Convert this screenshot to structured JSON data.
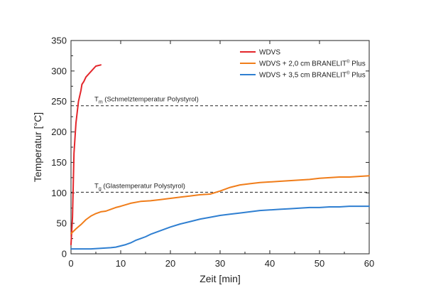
{
  "chart_data": {
    "type": "line",
    "xlabel": "Zeit [min]",
    "ylabel": "Temperatur [°C]",
    "xlim": [
      0,
      60
    ],
    "ylim": [
      0,
      350
    ],
    "xticks": [
      0,
      10,
      20,
      30,
      40,
      50,
      60
    ],
    "yticks": [
      0,
      50,
      100,
      150,
      200,
      250,
      300,
      350
    ],
    "grid": false,
    "legend_position": "top-right",
    "series": [
      {
        "name": "WDVS",
        "name_sup": "",
        "name_suffix": "",
        "color": "#e3262b",
        "x": [
          0,
          0.3,
          0.6,
          1.0,
          1.5,
          2.0,
          2.2,
          2.6,
          3.0,
          4.0,
          5.0,
          6.0
        ],
        "y": [
          15,
          60,
          165,
          215,
          250,
          268,
          278,
          283,
          290,
          299,
          308,
          310
        ]
      },
      {
        "name": "WDVS + 2,0 cm BRANELIT",
        "name_sup": "®",
        "name_suffix": " Plus",
        "color": "#f07d1a",
        "x": [
          0,
          1,
          2,
          3,
          4,
          5,
          6,
          7,
          8,
          9,
          10,
          12,
          14,
          16,
          18,
          20,
          22,
          24,
          26,
          28,
          30,
          32,
          34,
          36,
          38,
          40,
          42,
          44,
          46,
          48,
          50,
          52,
          54,
          56,
          58,
          60
        ],
        "y": [
          33,
          41,
          48,
          56,
          62,
          66,
          69,
          70,
          73,
          76,
          78,
          83,
          86,
          87,
          89,
          91,
          93,
          95,
          97,
          98,
          103,
          109,
          113,
          115,
          117,
          118,
          119,
          120,
          121,
          122,
          124,
          125,
          126,
          126,
          127,
          128
        ]
      },
      {
        "name": "WDVS + 3,5 cm BRANELIT",
        "name_sup": "®",
        "name_suffix": " Plus",
        "color": "#2f7fd1",
        "x": [
          0,
          2,
          4,
          6,
          8,
          9,
          10,
          11,
          12,
          13,
          14,
          15,
          16,
          18,
          20,
          22,
          24,
          26,
          28,
          30,
          32,
          34,
          36,
          38,
          40,
          42,
          44,
          46,
          48,
          50,
          52,
          54,
          56,
          58,
          60
        ],
        "y": [
          8,
          8,
          8,
          9,
          10,
          11,
          13,
          15,
          18,
          22,
          25,
          28,
          32,
          38,
          44,
          49,
          53,
          57,
          60,
          63,
          65,
          67,
          69,
          71,
          72,
          73,
          74,
          75,
          76,
          76,
          77,
          77,
          78,
          78,
          78
        ]
      }
    ],
    "reference_lines": [
      {
        "y": 243,
        "main": "T",
        "sub": "m",
        "text": " (Schmelztemperatur Polystyrol)"
      },
      {
        "y": 101,
        "main": "T",
        "sub": "g",
        "text": " (Glastemperatur Polystyrol)"
      }
    ]
  }
}
